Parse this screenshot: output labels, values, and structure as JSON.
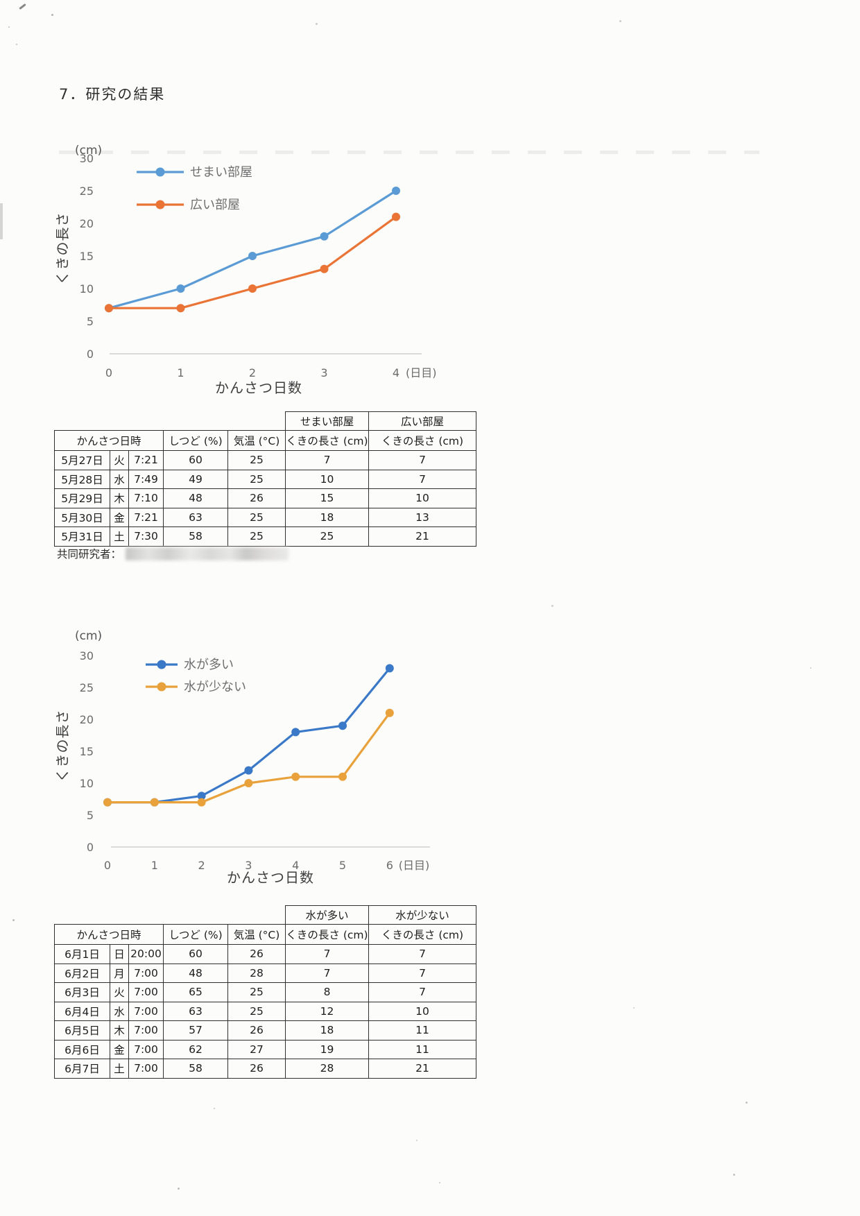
{
  "page": {
    "title": "7．研究の結果",
    "collaborator_label": "共同研究者："
  },
  "chart_data": [
    {
      "type": "line",
      "title": "",
      "unit_label": "(cm)",
      "ylabel": "くきの長さ",
      "xlabel": "かんさつ日数",
      "x_suffix": "(日目)",
      "x": [
        0,
        1,
        2,
        3,
        4
      ],
      "ylim": [
        0,
        30
      ],
      "ytick_step": 5,
      "grid": false,
      "legend_position": "top-left-inside",
      "series": [
        {
          "name": "せまい部屋",
          "color": "#5B9BD5",
          "values": [
            7,
            10,
            15,
            18,
            25
          ]
        },
        {
          "name": "広い部屋",
          "color": "#EA7435",
          "values": [
            7,
            7,
            10,
            13,
            21
          ]
        }
      ]
    },
    {
      "type": "line",
      "title": "",
      "unit_label": "(cm)",
      "ylabel": "くきの長さ",
      "xlabel": "かんさつ日数",
      "x_suffix": "(日目)",
      "x": [
        0,
        1,
        2,
        3,
        4,
        5,
        6
      ],
      "ylim": [
        0,
        30
      ],
      "ytick_step": 5,
      "grid": false,
      "legend_position": "top-left-inside",
      "series": [
        {
          "name": "水が多い",
          "color": "#3A78C8",
          "values": [
            7,
            7,
            8,
            12,
            18,
            19,
            28
          ]
        },
        {
          "name": "水が少ない",
          "color": "#E9A23B",
          "values": [
            7,
            7,
            7,
            10,
            11,
            11,
            21
          ]
        }
      ]
    }
  ],
  "tables": [
    {
      "group_headers": [
        "せまい部屋",
        "広い部屋"
      ],
      "columns": [
        "かんさつ日時",
        "しつど (%)",
        "気温 (°C)",
        "くきの長さ (cm)",
        "くきの長さ (cm)"
      ],
      "rows": [
        [
          "5月27日",
          "火",
          "7:21",
          "60",
          "25",
          "7",
          "7"
        ],
        [
          "5月28日",
          "水",
          "7:49",
          "49",
          "25",
          "10",
          "7"
        ],
        [
          "5月29日",
          "木",
          "7:10",
          "48",
          "26",
          "15",
          "10"
        ],
        [
          "5月30日",
          "金",
          "7:21",
          "63",
          "25",
          "18",
          "13"
        ],
        [
          "5月31日",
          "土",
          "7:30",
          "58",
          "25",
          "25",
          "21"
        ]
      ]
    },
    {
      "group_headers": [
        "水が多い",
        "水が少ない"
      ],
      "columns": [
        "かんさつ日時",
        "しつど (%)",
        "気温 (°C)",
        "くきの長さ (cm)",
        "くきの長さ (cm)"
      ],
      "rows": [
        [
          "6月1日",
          "日",
          "20:00",
          "60",
          "26",
          "7",
          "7"
        ],
        [
          "6月2日",
          "月",
          "7:00",
          "48",
          "28",
          "7",
          "7"
        ],
        [
          "6月3日",
          "火",
          "7:00",
          "65",
          "25",
          "8",
          "7"
        ],
        [
          "6月4日",
          "水",
          "7:00",
          "63",
          "25",
          "12",
          "10"
        ],
        [
          "6月5日",
          "木",
          "7:00",
          "57",
          "26",
          "18",
          "11"
        ],
        [
          "6月6日",
          "金",
          "7:00",
          "62",
          "27",
          "19",
          "11"
        ],
        [
          "6月7日",
          "土",
          "7:00",
          "58",
          "26",
          "28",
          "21"
        ]
      ]
    }
  ]
}
